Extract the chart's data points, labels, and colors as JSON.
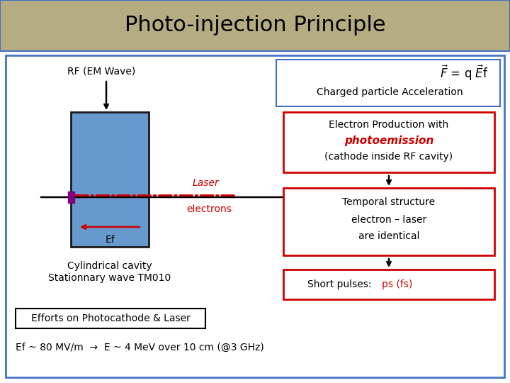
{
  "title": "Photo-injection Principle",
  "title_bg_color": "#b5ac82",
  "title_fontsize": 22,
  "main_bg_color": "#ffffff",
  "border_color": "#4472c4",
  "cavity_color": "#6699cc",
  "cavity_border_color": "#1a1a1a",
  "rf_label": "RF (EM Wave)",
  "laser_label": "Laser",
  "electrons_label": "electrons",
  "ef_label": "Ef",
  "cavity_label1": "Cylindrical cavity",
  "cavity_label2": "Stationnary wave TM010",
  "charge_accel": "Charged particle Acceleration",
  "box1_line1": "Electron Production with",
  "box1_line2": "photoemission",
  "box1_line3": "(cathode inside RF cavity)",
  "box2_line1": "Temporal structure",
  "box2_line2": "electron – laser",
  "box2_line3": "are identical",
  "box3_line1": "Short pulses: ",
  "box3_line2": "ps (fs)",
  "efforts_label": "Efforts on Photocathode & Laser",
  "bottom_eq": "Ef ~ 80 MV/m  →  E ~ 4 MeV over 10 cm (@3 GHz)",
  "red_color": "#cc0000",
  "box_border_color": "#cc0000"
}
